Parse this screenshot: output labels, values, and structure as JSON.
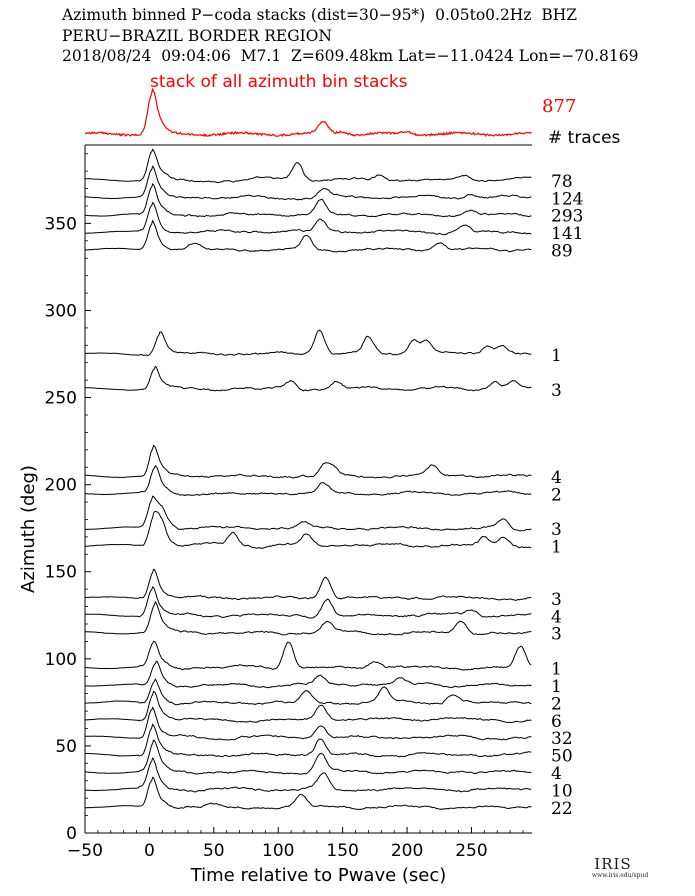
{
  "header": {
    "line1": "Azimuth binned P−coda stacks (dist=30−95*)  0.05to0.2Hz  BHZ",
    "line2": "PERU−BRAZIL BORDER REGION",
    "line3": "2018/08/24  09:04:06  M7.1  Z=609.48km Lat=−11.0424 Lon=−70.8169"
  },
  "stack": {
    "title": "stack of all azimuth bin stacks",
    "count": "877",
    "traces_label": "# traces",
    "color": "#ff0000"
  },
  "logo": {
    "name": "IRIS",
    "url": "www.iris.edu/spud"
  },
  "chart_data": {
    "type": "line",
    "title": "Azimuth binned P−coda stacks (dist=30−95*)  0.05to0.2Hz  BHZ",
    "xlabel": "Time relative to Pwave (sec)",
    "ylabel": "Azimuth (deg)",
    "xlim": [
      -50,
      297
    ],
    "ylim": [
      0,
      395
    ],
    "xticks": [
      -50,
      0,
      50,
      100,
      150,
      200,
      250
    ],
    "yticks": [
      0,
      50,
      100,
      150,
      200,
      250,
      300,
      350
    ],
    "grid": false,
    "series": [
      {
        "azimuth": 375,
        "traces": "78",
        "peaks": [
          [
            2,
            1.0
          ],
          [
            115,
            0.65
          ],
          [
            178,
            0.2
          ],
          [
            245,
            0.15
          ]
        ]
      },
      {
        "azimuth": 365,
        "traces": "124",
        "peaks": [
          [
            2,
            1.0
          ],
          [
            135,
            0.3
          ],
          [
            250,
            0.12
          ]
        ]
      },
      {
        "azimuth": 355,
        "traces": "293",
        "peaks": [
          [
            2,
            1.0
          ],
          [
            133,
            0.55
          ],
          [
            250,
            0.18
          ]
        ]
      },
      {
        "azimuth": 345,
        "traces": "141",
        "peaks": [
          [
            2,
            1.0
          ],
          [
            133,
            0.45
          ],
          [
            245,
            0.25
          ]
        ]
      },
      {
        "azimuth": 335,
        "traces": "89",
        "peaks": [
          [
            2,
            1.0
          ],
          [
            35,
            0.2
          ],
          [
            122,
            0.5
          ],
          [
            225,
            0.25
          ]
        ]
      },
      {
        "azimuth": 275,
        "traces": "1",
        "peaks": [
          [
            8,
            0.75
          ],
          [
            132,
            0.9
          ],
          [
            170,
            0.6
          ],
          [
            205,
            0.55
          ],
          [
            215,
            0.5
          ],
          [
            262,
            0.3
          ],
          [
            274,
            0.35
          ]
        ]
      },
      {
        "azimuth": 255,
        "traces": "3",
        "peaks": [
          [
            4,
            0.75
          ],
          [
            110,
            0.3
          ],
          [
            145,
            0.25
          ],
          [
            268,
            0.3
          ],
          [
            282,
            0.28
          ]
        ]
      },
      {
        "azimuth": 205,
        "traces": "4",
        "peaks": [
          [
            3,
            1.0
          ],
          [
            136,
            0.4
          ],
          [
            143,
            0.3
          ],
          [
            220,
            0.35
          ]
        ]
      },
      {
        "azimuth": 195,
        "traces": "2",
        "peaks": [
          [
            4,
            0.9
          ],
          [
            135,
            0.35
          ]
        ]
      },
      {
        "azimuth": 175,
        "traces": "3",
        "peaks": [
          [
            2,
            1.0
          ],
          [
            9,
            0.5
          ],
          [
            120,
            0.2
          ],
          [
            275,
            0.3
          ]
        ]
      },
      {
        "azimuth": 165,
        "traces": "1",
        "peaks": [
          [
            3,
            1.0
          ],
          [
            9,
            0.65
          ],
          [
            65,
            0.5
          ],
          [
            122,
            0.4
          ],
          [
            260,
            0.3
          ],
          [
            275,
            0.35
          ]
        ]
      },
      {
        "azimuth": 135,
        "traces": "3",
        "peaks": [
          [
            3,
            1.0
          ],
          [
            137,
            0.8
          ]
        ]
      },
      {
        "azimuth": 125,
        "traces": "4",
        "peaks": [
          [
            2,
            1.0
          ],
          [
            138,
            0.6
          ],
          [
            250,
            0.22
          ]
        ]
      },
      {
        "azimuth": 115,
        "traces": "3",
        "peaks": [
          [
            4,
            1.0
          ],
          [
            138,
            0.4
          ],
          [
            242,
            0.45
          ]
        ]
      },
      {
        "azimuth": 95,
        "traces": "1",
        "peaks": [
          [
            3,
            0.85
          ],
          [
            108,
            1.0
          ],
          [
            175,
            0.25
          ],
          [
            288,
            0.75
          ]
        ]
      },
      {
        "azimuth": 85,
        "traces": "1",
        "peaks": [
          [
            5,
            0.8
          ],
          [
            132,
            0.3
          ],
          [
            195,
            0.25
          ]
        ]
      },
      {
        "azimuth": 75,
        "traces": "2",
        "peaks": [
          [
            4,
            0.8
          ],
          [
            122,
            0.4
          ],
          [
            182,
            0.5
          ],
          [
            235,
            0.3
          ]
        ]
      },
      {
        "azimuth": 65,
        "traces": "6",
        "peaks": [
          [
            3,
            1.0
          ],
          [
            133,
            0.55
          ]
        ]
      },
      {
        "azimuth": 55,
        "traces": "32",
        "peaks": [
          [
            2,
            1.0
          ],
          [
            133,
            0.4
          ]
        ]
      },
      {
        "azimuth": 45,
        "traces": "50",
        "peaks": [
          [
            2,
            1.0
          ],
          [
            133,
            0.6
          ]
        ]
      },
      {
        "azimuth": 35,
        "traces": "4",
        "peaks": [
          [
            3,
            1.0
          ],
          [
            133,
            0.7
          ]
        ]
      },
      {
        "azimuth": 25,
        "traces": "10",
        "peaks": [
          [
            2,
            1.0
          ],
          [
            135,
            0.55
          ]
        ]
      },
      {
        "azimuth": 15,
        "traces": "22",
        "peaks": [
          [
            2,
            1.0
          ],
          [
            118,
            0.4
          ],
          [
            48,
            0.15
          ]
        ]
      }
    ]
  }
}
